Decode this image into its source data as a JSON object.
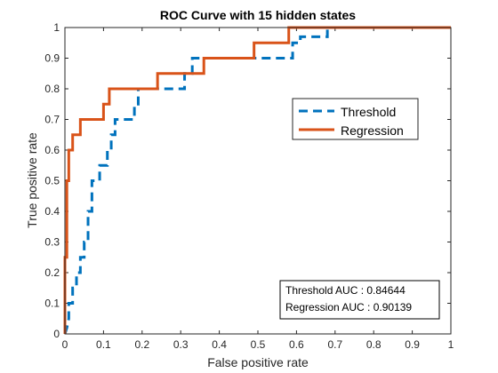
{
  "chart_data": {
    "type": "line",
    "title": "ROC Curve with 15 hidden states",
    "xlabel": "False positive rate",
    "ylabel": "True positive rate",
    "xlim": [
      0,
      1
    ],
    "ylim": [
      0,
      1
    ],
    "xticks": [
      "0",
      "0.1",
      "0.2",
      "0.3",
      "0.4",
      "0.5",
      "0.6",
      "0.7",
      "0.8",
      "0.9",
      "1"
    ],
    "yticks": [
      "0",
      "0.1",
      "0.2",
      "0.3",
      "0.4",
      "0.5",
      "0.6",
      "0.7",
      "0.8",
      "0.9",
      "1"
    ],
    "grid": false,
    "legend": {
      "placement": "top-right",
      "entries": [
        "Threshold",
        "Regression"
      ]
    },
    "annotation": {
      "lines": [
        "Threshold AUC : 0.84644",
        "Regression AUC : 0.90139"
      ],
      "placement": "bottom-right"
    },
    "series": [
      {
        "name": "Threshold",
        "color": "#0072BD",
        "style": "dashed",
        "x": [
          0,
          0.005,
          0.01,
          0.01,
          0.02,
          0.02,
          0.03,
          0.03,
          0.04,
          0.04,
          0.05,
          0.05,
          0.06,
          0.06,
          0.07,
          0.07,
          0.09,
          0.09,
          0.11,
          0.11,
          0.12,
          0.12,
          0.13,
          0.13,
          0.18,
          0.18,
          0.19,
          0.19,
          0.31,
          0.31,
          0.33,
          0.33,
          0.59,
          0.59,
          0.61,
          0.61,
          0.68,
          0.68,
          1.0
        ],
        "y": [
          0,
          0.02,
          0.05,
          0.1,
          0.1,
          0.15,
          0.15,
          0.2,
          0.2,
          0.25,
          0.25,
          0.3,
          0.3,
          0.4,
          0.4,
          0.5,
          0.5,
          0.55,
          0.55,
          0.6,
          0.6,
          0.65,
          0.65,
          0.7,
          0.7,
          0.75,
          0.75,
          0.8,
          0.8,
          0.85,
          0.85,
          0.9,
          0.9,
          0.95,
          0.95,
          0.97,
          0.97,
          1.0,
          1.0
        ]
      },
      {
        "name": "Regression",
        "color": "#D95319",
        "style": "solid",
        "x": [
          0,
          0,
          0.005,
          0.005,
          0.01,
          0.01,
          0.02,
          0.02,
          0.04,
          0.04,
          0.1,
          0.1,
          0.115,
          0.115,
          0.24,
          0.24,
          0.36,
          0.36,
          0.49,
          0.49,
          0.58,
          0.58,
          1.0
        ],
        "y": [
          0,
          0.25,
          0.25,
          0.5,
          0.5,
          0.6,
          0.6,
          0.65,
          0.65,
          0.7,
          0.7,
          0.75,
          0.75,
          0.8,
          0.8,
          0.85,
          0.85,
          0.9,
          0.9,
          0.95,
          0.95,
          1.0,
          1.0
        ]
      }
    ]
  }
}
